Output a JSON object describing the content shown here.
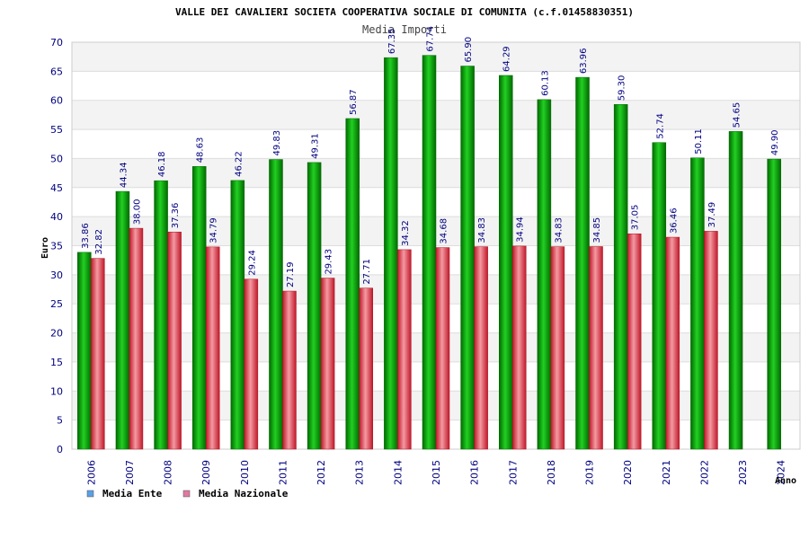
{
  "colors": {
    "ente": "#00b400",
    "ente_dark": "#006600",
    "nazionale": "#e8424a",
    "nazionale_dark": "#b01020",
    "legend_ente": "#5aa0e6",
    "legend_nazionale": "#e07aa0",
    "text_blue": "#000080"
  },
  "chart_data": {
    "type": "bar",
    "title": "VALLE DEI CAVALIERI SOCIETA COOPERATIVA SOCIALE DI COMUNITA (c.f.01458830351)",
    "subtitle": "Media Importi",
    "xlabel": "Anno",
    "ylabel": "Euro",
    "ylim": [
      0,
      70
    ],
    "yticks": [
      0,
      5,
      10,
      15,
      20,
      25,
      30,
      35,
      40,
      45,
      50,
      55,
      60,
      65,
      70
    ],
    "grid": true,
    "legend_position": "bottom-left",
    "categories": [
      "2006",
      "2007",
      "2008",
      "2009",
      "2010",
      "2011",
      "2012",
      "2013",
      "2014",
      "2015",
      "2016",
      "2017",
      "2018",
      "2019",
      "2020",
      "2021",
      "2022",
      "2023",
      "2024"
    ],
    "series": [
      {
        "name": "Media Ente",
        "values": [
          33.86,
          44.34,
          46.18,
          48.63,
          46.22,
          49.83,
          49.31,
          56.87,
          67.35,
          67.74,
          65.9,
          64.29,
          60.13,
          63.96,
          59.3,
          52.74,
          50.11,
          54.65,
          49.9
        ],
        "labels": [
          "33.86",
          "44.34",
          "46.18",
          "48.63",
          "46.22",
          "49.83",
          "49.31",
          "56.87",
          "67.35",
          "67.74",
          "65.90",
          "64.29",
          "60.13",
          "63.96",
          "59.30",
          "52.74",
          "50.11",
          "54.65",
          "49.90"
        ]
      },
      {
        "name": "Media Nazionale",
        "values": [
          32.82,
          38.0,
          37.36,
          34.79,
          29.24,
          27.19,
          29.43,
          27.71,
          34.32,
          34.68,
          34.83,
          34.94,
          34.83,
          34.85,
          37.05,
          36.46,
          37.49,
          null,
          null
        ],
        "labels": [
          "32.82",
          "38.00",
          "37.36",
          "34.79",
          "29.24",
          "27.19",
          "29.43",
          "27.71",
          "34.32",
          "34.68",
          "34.83",
          "34.94",
          "34.83",
          "34.85",
          "37.05",
          "36.46",
          "37.49",
          null,
          null
        ]
      }
    ]
  }
}
